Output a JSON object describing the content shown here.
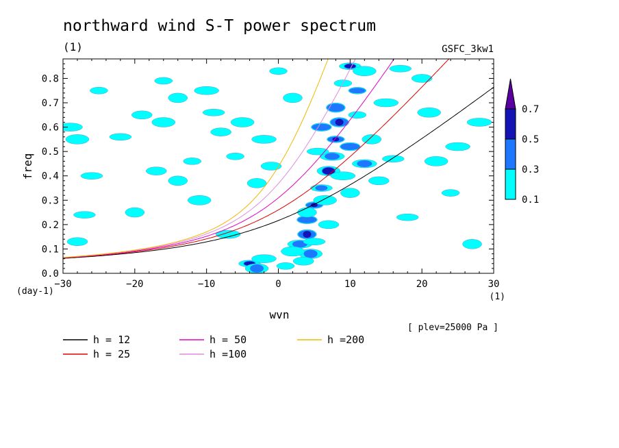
{
  "chart_data": {
    "type": "heatmap",
    "title": "northward wind S-T power spectrum",
    "subtitle": "(1)",
    "dataset_label": "GSFC_3kw1",
    "xlabel": "wvn",
    "ylabel": "freq",
    "xlim": [
      -30,
      30
    ],
    "ylim": [
      0,
      0.88
    ],
    "x_ticks": [
      "-30",
      "-20",
      "-10",
      "0",
      "10",
      "20",
      "30"
    ],
    "y_ticks": [
      "0.0",
      "0.1",
      "0.2",
      "0.3",
      "0.4",
      "0.5",
      "0.6",
      "0.7",
      "0.8"
    ],
    "x_unit": "(1)",
    "y_unit": "(day-1)",
    "annotation": "[ plev=25000 Pa ]",
    "colorbar": {
      "labels": [
        "0.1",
        "0.3",
        "0.5",
        "0.7"
      ],
      "colors": [
        "#00ffff",
        "#1e78ff",
        "#1414b4",
        "#5a00a0"
      ]
    },
    "dispersion_curves": [
      {
        "name": "h = 12",
        "h": 12,
        "color": "#000000"
      },
      {
        "name": "h = 25",
        "h": 25,
        "color": "#dd0000"
      },
      {
        "name": "h = 50",
        "h": 50,
        "color": "#e000c0"
      },
      {
        "name": "h =100",
        "h": 100,
        "color": "#e08ce0"
      },
      {
        "name": "h =200",
        "h": 200,
        "color": "#f0b800"
      }
    ],
    "blobs": [
      {
        "x": 5,
        "y": 0.28,
        "level": 3
      },
      {
        "x": 4,
        "y": 0.16,
        "level": 3
      },
      {
        "x": 4,
        "y": 0.22,
        "level": 2
      },
      {
        "x": -4,
        "y": 0.04,
        "level": 3
      },
      {
        "x": 7,
        "y": 0.42,
        "level": 3
      },
      {
        "x": 7.5,
        "y": 0.48,
        "level": 2
      },
      {
        "x": 8,
        "y": 0.55,
        "level": 3
      },
      {
        "x": 8.5,
        "y": 0.62,
        "level": 3
      },
      {
        "x": 6,
        "y": 0.6,
        "level": 2
      },
      {
        "x": 10,
        "y": 0.85,
        "level": 3
      },
      {
        "x": 4.5,
        "y": 0.08,
        "level": 2
      },
      {
        "x": 3,
        "y": 0.12,
        "level": 2
      },
      {
        "x": 11,
        "y": 0.75,
        "level": 2
      },
      {
        "x": 8,
        "y": 0.68,
        "level": 2
      },
      {
        "x": 10,
        "y": 0.52,
        "level": 2
      },
      {
        "x": 6,
        "y": 0.35,
        "level": 2
      },
      {
        "x": -3,
        "y": 0.02,
        "level": 2
      },
      {
        "x": 12,
        "y": 0.45,
        "level": 2
      },
      {
        "x": 9,
        "y": 0.78,
        "level": 1
      },
      {
        "x": 4,
        "y": 0.25,
        "level": 1
      },
      {
        "x": 3.5,
        "y": 0.05,
        "level": 1
      },
      {
        "x": 5,
        "y": 0.13,
        "level": 1
      },
      {
        "x": 6.5,
        "y": 0.3,
        "level": 1
      },
      {
        "x": 9,
        "y": 0.4,
        "level": 1
      },
      {
        "x": 11,
        "y": 0.65,
        "level": 1
      },
      {
        "x": 13,
        "y": 0.55,
        "level": 1
      },
      {
        "x": 7,
        "y": 0.2,
        "level": 1
      },
      {
        "x": 5.5,
        "y": 0.5,
        "level": 1
      },
      {
        "x": 2,
        "y": 0.09,
        "level": 1
      },
      {
        "x": -2,
        "y": 0.06,
        "level": 1
      },
      {
        "x": 1,
        "y": 0.03,
        "level": 1
      },
      {
        "x": 10,
        "y": 0.33,
        "level": 1
      },
      {
        "x": 14,
        "y": 0.38,
        "level": 1
      },
      {
        "x": 16,
        "y": 0.47,
        "level": 1
      },
      {
        "x": 12,
        "y": 0.83,
        "level": 1
      },
      {
        "x": 15,
        "y": 0.7,
        "level": 1
      },
      {
        "x": -16,
        "y": 0.79,
        "level": 1
      },
      {
        "x": -14,
        "y": 0.72,
        "level": 1
      },
      {
        "x": -19,
        "y": 0.65,
        "level": 1
      },
      {
        "x": -22,
        "y": 0.56,
        "level": 1
      },
      {
        "x": -16,
        "y": 0.62,
        "level": 1
      },
      {
        "x": -10,
        "y": 0.75,
        "level": 1
      },
      {
        "x": -12,
        "y": 0.46,
        "level": 1
      },
      {
        "x": -14,
        "y": 0.38,
        "level": 1
      },
      {
        "x": -17,
        "y": 0.42,
        "level": 1
      },
      {
        "x": -26,
        "y": 0.4,
        "level": 1
      },
      {
        "x": -28,
        "y": 0.55,
        "level": 1
      },
      {
        "x": -29,
        "y": 0.6,
        "level": 1
      },
      {
        "x": -25,
        "y": 0.75,
        "level": 1
      },
      {
        "x": -20,
        "y": 0.25,
        "level": 1
      },
      {
        "x": -28,
        "y": 0.13,
        "level": 1
      },
      {
        "x": -27,
        "y": 0.24,
        "level": 1
      },
      {
        "x": -5,
        "y": 0.62,
        "level": 1
      },
      {
        "x": -2,
        "y": 0.55,
        "level": 1
      },
      {
        "x": -6,
        "y": 0.48,
        "level": 1
      },
      {
        "x": -3,
        "y": 0.37,
        "level": 1
      },
      {
        "x": -8,
        "y": 0.58,
        "level": 1
      },
      {
        "x": -9,
        "y": 0.66,
        "level": 1
      },
      {
        "x": -11,
        "y": 0.3,
        "level": 1
      },
      {
        "x": -7,
        "y": 0.16,
        "level": 1
      },
      {
        "x": 0,
        "y": 0.83,
        "level": 1
      },
      {
        "x": 2,
        "y": 0.72,
        "level": 1
      },
      {
        "x": -1,
        "y": 0.44,
        "level": 1
      },
      {
        "x": 18,
        "y": 0.23,
        "level": 1
      },
      {
        "x": 21,
        "y": 0.66,
        "level": 1
      },
      {
        "x": 25,
        "y": 0.52,
        "level": 1
      },
      {
        "x": 24,
        "y": 0.33,
        "level": 1
      },
      {
        "x": 27,
        "y": 0.12,
        "level": 1
      },
      {
        "x": 20,
        "y": 0.8,
        "level": 1
      },
      {
        "x": 17,
        "y": 0.84,
        "level": 1
      },
      {
        "x": 22,
        "y": 0.46,
        "level": 1
      },
      {
        "x": 28,
        "y": 0.62,
        "level": 1
      }
    ]
  }
}
